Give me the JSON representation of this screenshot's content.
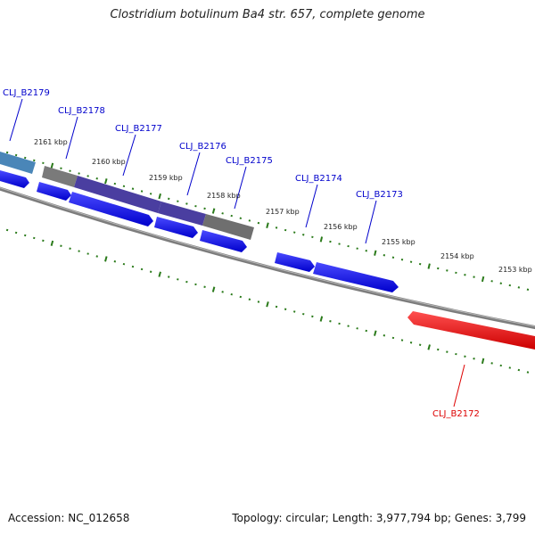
{
  "title": "Clostridium botulinum Ba4 str. 657, complete genome",
  "footer": {
    "accession": "Accession: NC_012658",
    "topology": "Topology: circular; Length: 3,977,794 bp; Genes: 3,799"
  },
  "colors": {
    "backbone": "#7a7a7a",
    "tick": "#2a7a1a",
    "forward_gene": "#0000ee",
    "reverse_gene": "#ee0000",
    "label_forward": "#0000cc",
    "label_reverse": "#dd0000"
  },
  "kbp_labels": [
    "2161 kbp",
    "2160 kbp",
    "2159 kbp",
    "2158 kbp",
    "2157 kbp",
    "2156 kbp",
    "2155 kbp",
    "2154 kbp",
    "2153 kbp"
  ],
  "genes": [
    {
      "label": "CLJ_B2179",
      "strand": "forward"
    },
    {
      "label": "CLJ_B2178",
      "strand": "forward"
    },
    {
      "label": "CLJ_B2177",
      "strand": "forward"
    },
    {
      "label": "CLJ_B2176",
      "strand": "forward"
    },
    {
      "label": "CLJ_B2175",
      "strand": "forward"
    },
    {
      "label": "CLJ_B2174",
      "strand": "forward"
    },
    {
      "label": "CLJ_B2173",
      "strand": "forward"
    },
    {
      "label": "CLJ_B2172",
      "strand": "reverse"
    }
  ]
}
